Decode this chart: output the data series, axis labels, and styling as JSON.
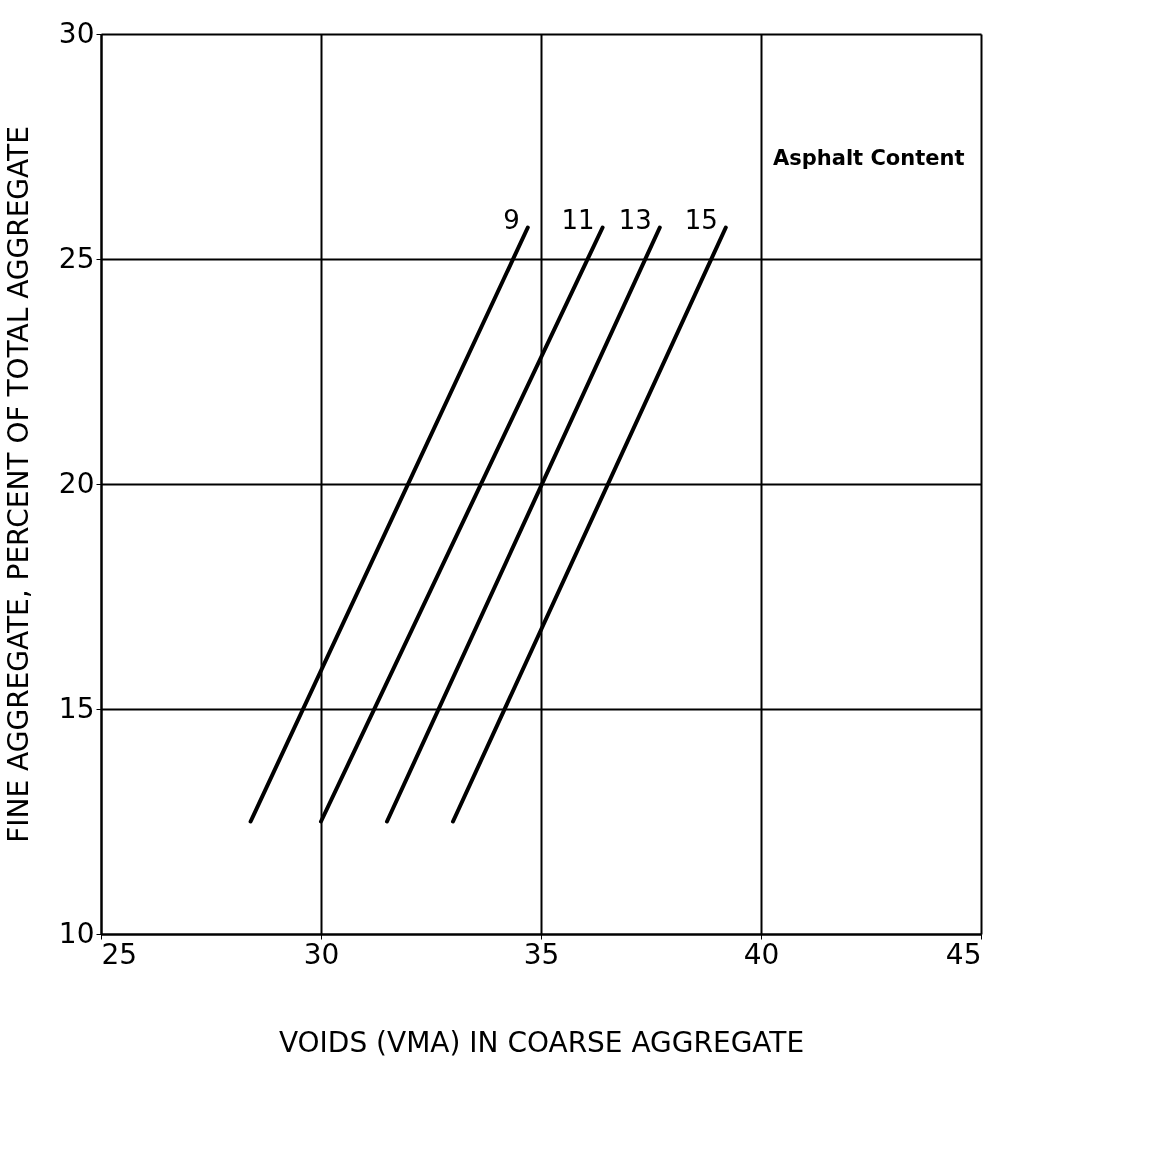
{
  "chart_data": {
    "type": "line",
    "xlabel": "VOIDS (VMA) IN COARSE AGGREGATE",
    "ylabel": "FINE AGGREGATE, PERCENT OF TOTAL AGGREGATE",
    "annotations": [
      "Asphalt Content"
    ],
    "xlim": [
      25,
      45
    ],
    "xticks": [
      25,
      30,
      35,
      40,
      45
    ],
    "ylim": [
      10,
      30
    ],
    "yticks": [
      10,
      15,
      20,
      25,
      30
    ],
    "grid": true,
    "legend": false,
    "marker": "none",
    "line_style": "solid",
    "series": [
      {
        "name": "9",
        "color": "#000000",
        "x": [
          28.4,
          34.7
        ],
        "values": [
          12.5,
          25.7
        ]
      },
      {
        "name": "11",
        "color": "#000000",
        "x": [
          30.0,
          36.4
        ],
        "values": [
          12.5,
          25.7
        ]
      },
      {
        "name": "13",
        "color": "#000000",
        "x": [
          31.5,
          37.7
        ],
        "values": [
          12.5,
          25.7
        ]
      },
      {
        "name": "15",
        "color": "#000000",
        "x": [
          33.0,
          39.2
        ],
        "values": [
          12.5,
          25.7
        ]
      }
    ]
  }
}
